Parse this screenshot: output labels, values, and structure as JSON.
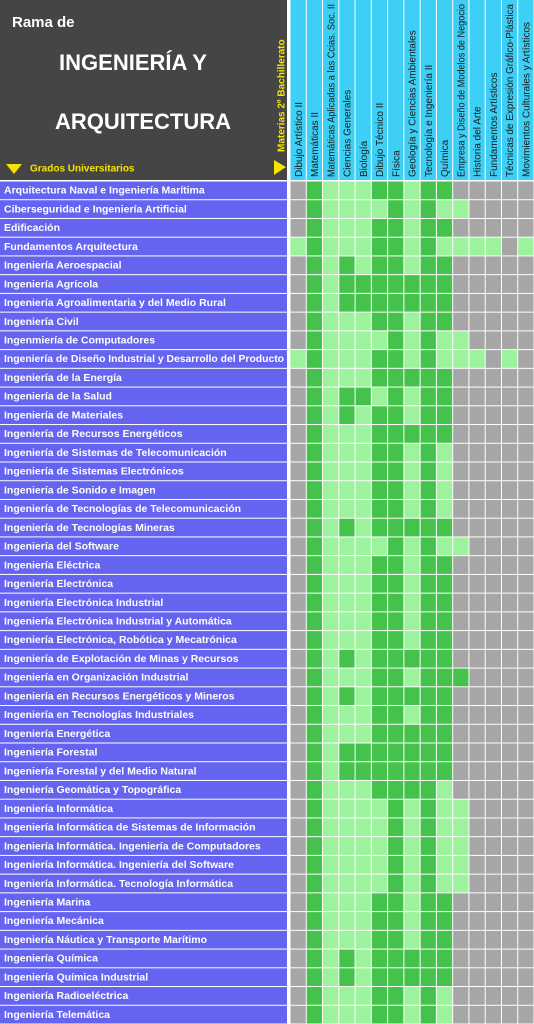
{
  "header": {
    "title_line1": "Rama de",
    "title_line2": "INGENIERÍA Y",
    "title_line3": "ARQUITECTURA",
    "rows_label": "Grados Universitarios",
    "columns_label": "Materias 2º Bachillerato"
  },
  "level_colors": [
    "#a6a6a6",
    "#9df29d",
    "#45c24b"
  ],
  "columns": [
    "Dibujo Artístico II",
    "Matemáticas II",
    "Matemáticas Aplicadas a las Ccias. Soc. II",
    "Ciencias Generales",
    "Biología",
    "Dibujo Técnico II",
    "Física",
    "Geología y Ciencias Ambientales",
    "Tecnología e Ingeniería II",
    "Química",
    "Empresa y Diseño de Modelos de Negocio",
    "Historia del Arte",
    "Fundamentos Artísticos",
    "Técnicas de Expresión Gráfico-Plástica",
    "Movimientos Culturales y Artísticos"
  ],
  "rows": [
    {
      "label": "Arquitectura Naval e Ingeniería Marítima",
      "cells": [
        0,
        2,
        1,
        1,
        1,
        2,
        2,
        1,
        2,
        2,
        0,
        0,
        0,
        0,
        0
      ]
    },
    {
      "label": "Ciberseguridad e Ingeniería Artificial",
      "cells": [
        0,
        2,
        1,
        1,
        1,
        1,
        2,
        1,
        2,
        1,
        1,
        0,
        0,
        0,
        0
      ]
    },
    {
      "label": "Edificación",
      "cells": [
        0,
        2,
        1,
        1,
        1,
        2,
        2,
        1,
        2,
        2,
        0,
        0,
        0,
        0,
        0
      ]
    },
    {
      "label": "Fundamentos Arquitectura",
      "cells": [
        1,
        2,
        1,
        1,
        1,
        2,
        2,
        1,
        2,
        1,
        1,
        1,
        1,
        0,
        1
      ]
    },
    {
      "label": "Ingeniería Aeroespacial",
      "cells": [
        0,
        2,
        1,
        2,
        1,
        2,
        2,
        1,
        2,
        2,
        0,
        0,
        0,
        0,
        0
      ]
    },
    {
      "label": "Ingeniería Agrícola",
      "cells": [
        0,
        2,
        1,
        2,
        2,
        2,
        2,
        2,
        2,
        2,
        0,
        0,
        0,
        0,
        0
      ]
    },
    {
      "label": "Ingeniería Agroalimentaria y del Medio Rural",
      "cells": [
        0,
        2,
        1,
        2,
        2,
        2,
        2,
        2,
        2,
        2,
        0,
        0,
        0,
        0,
        0
      ]
    },
    {
      "label": "Ingeniería Civil",
      "cells": [
        0,
        2,
        1,
        1,
        1,
        2,
        2,
        1,
        2,
        2,
        0,
        0,
        0,
        0,
        0
      ]
    },
    {
      "label": "Ingenmiería de Computadores",
      "cells": [
        0,
        2,
        1,
        1,
        1,
        1,
        2,
        1,
        2,
        1,
        1,
        0,
        0,
        0,
        0
      ]
    },
    {
      "label": "Ingeniería de Diseño Industrial y Desarrollo del Producto",
      "cells": [
        1,
        2,
        1,
        1,
        1,
        2,
        2,
        1,
        2,
        1,
        1,
        1,
        0,
        1,
        0
      ]
    },
    {
      "label": "Ingeniería de la Energía",
      "cells": [
        0,
        2,
        1,
        1,
        1,
        2,
        2,
        2,
        2,
        2,
        0,
        0,
        0,
        0,
        0
      ]
    },
    {
      "label": "Ingeniería de la Salud",
      "cells": [
        0,
        2,
        1,
        2,
        2,
        1,
        2,
        1,
        2,
        2,
        0,
        0,
        0,
        0,
        0
      ]
    },
    {
      "label": "Ingeniería de Materiales",
      "cells": [
        0,
        2,
        1,
        2,
        1,
        2,
        2,
        1,
        2,
        2,
        0,
        0,
        0,
        0,
        0
      ]
    },
    {
      "label": "Ingeniería de Recursos Energéticos",
      "cells": [
        0,
        2,
        1,
        1,
        1,
        2,
        2,
        2,
        2,
        2,
        0,
        0,
        0,
        0,
        0
      ]
    },
    {
      "label": "Ingeniería de Sistemas de Telecomunicación",
      "cells": [
        0,
        2,
        1,
        1,
        1,
        2,
        2,
        1,
        2,
        1,
        0,
        0,
        0,
        0,
        0
      ]
    },
    {
      "label": "Ingeniería de Sistemas Electrónicos",
      "cells": [
        0,
        2,
        1,
        1,
        1,
        2,
        2,
        1,
        2,
        1,
        0,
        0,
        0,
        0,
        0
      ]
    },
    {
      "label": "Ingeniería de Sonido e Imagen",
      "cells": [
        0,
        2,
        1,
        1,
        1,
        2,
        2,
        1,
        2,
        1,
        0,
        0,
        0,
        0,
        0
      ]
    },
    {
      "label": "Ingeniería de Tecnologías de Telecomunicación",
      "cells": [
        0,
        2,
        1,
        1,
        1,
        2,
        2,
        1,
        2,
        1,
        0,
        0,
        0,
        0,
        0
      ]
    },
    {
      "label": "Ingeniería de Tecnologías Mineras",
      "cells": [
        0,
        2,
        1,
        2,
        1,
        2,
        2,
        2,
        2,
        2,
        0,
        0,
        0,
        0,
        0
      ]
    },
    {
      "label": "Ingeniería del Software",
      "cells": [
        0,
        2,
        1,
        1,
        1,
        1,
        2,
        1,
        2,
        1,
        1,
        0,
        0,
        0,
        0
      ]
    },
    {
      "label": "Ingeniería Eléctrica",
      "cells": [
        0,
        2,
        1,
        1,
        1,
        2,
        2,
        1,
        2,
        2,
        0,
        0,
        0,
        0,
        0
      ]
    },
    {
      "label": "Ingeniería Electrónica",
      "cells": [
        0,
        2,
        1,
        1,
        1,
        2,
        2,
        1,
        2,
        2,
        0,
        0,
        0,
        0,
        0
      ]
    },
    {
      "label": "Ingeniería Electrónica Industrial",
      "cells": [
        0,
        2,
        1,
        1,
        1,
        2,
        2,
        1,
        2,
        2,
        0,
        0,
        0,
        0,
        0
      ]
    },
    {
      "label": "Ingeniería Electrónica Industrial y Automática",
      "cells": [
        0,
        2,
        1,
        1,
        1,
        2,
        2,
        1,
        2,
        2,
        0,
        0,
        0,
        0,
        0
      ]
    },
    {
      "label": "Ingeniería Electrónica, Robótica y Mecatrónica",
      "cells": [
        0,
        2,
        1,
        1,
        1,
        2,
        2,
        1,
        2,
        2,
        0,
        0,
        0,
        0,
        0
      ]
    },
    {
      "label": "Ingeniería de Explotación de Minas y Recursos",
      "cells": [
        0,
        2,
        1,
        2,
        1,
        2,
        2,
        2,
        2,
        2,
        0,
        0,
        0,
        0,
        0
      ]
    },
    {
      "label": "Ingeniería en Organización Industrial",
      "cells": [
        0,
        2,
        1,
        1,
        1,
        2,
        2,
        1,
        2,
        2,
        2,
        0,
        0,
        0,
        0
      ]
    },
    {
      "label": "Ingeniería en Recursos Energéticos y Mineros",
      "cells": [
        0,
        2,
        1,
        2,
        1,
        2,
        2,
        2,
        2,
        2,
        0,
        0,
        0,
        0,
        0
      ]
    },
    {
      "label": "Ingeniería en Tecnologías Industriales",
      "cells": [
        0,
        2,
        1,
        1,
        1,
        2,
        2,
        1,
        2,
        2,
        0,
        0,
        0,
        0,
        0
      ]
    },
    {
      "label": "Ingeniería Energética",
      "cells": [
        0,
        2,
        1,
        1,
        1,
        2,
        2,
        2,
        2,
        2,
        0,
        0,
        0,
        0,
        0
      ]
    },
    {
      "label": "Ingeniería Forestal",
      "cells": [
        0,
        2,
        1,
        2,
        2,
        2,
        2,
        2,
        2,
        2,
        0,
        0,
        0,
        0,
        0
      ]
    },
    {
      "label": "Ingeniería Forestal y del Medio Natural",
      "cells": [
        0,
        2,
        1,
        2,
        2,
        2,
        2,
        2,
        2,
        2,
        0,
        0,
        0,
        0,
        0
      ]
    },
    {
      "label": "Ingeniería Geomática y Topográfica",
      "cells": [
        0,
        2,
        1,
        1,
        1,
        2,
        2,
        2,
        2,
        1,
        0,
        0,
        0,
        0,
        0
      ]
    },
    {
      "label": "Ingeniería Informática",
      "cells": [
        0,
        2,
        1,
        1,
        1,
        1,
        2,
        1,
        2,
        1,
        1,
        0,
        0,
        0,
        0
      ]
    },
    {
      "label": "Ingeniería Informática de Sistemas de Información",
      "cells": [
        0,
        2,
        1,
        1,
        1,
        1,
        2,
        1,
        2,
        1,
        1,
        0,
        0,
        0,
        0
      ]
    },
    {
      "label": "Ingeniería Informática. Ingeniería de Computadores",
      "cells": [
        0,
        2,
        1,
        1,
        1,
        1,
        2,
        1,
        2,
        1,
        1,
        0,
        0,
        0,
        0
      ]
    },
    {
      "label": "Ingeniería Informática. Ingeniería del Software",
      "cells": [
        0,
        2,
        1,
        1,
        1,
        1,
        2,
        1,
        2,
        1,
        1,
        0,
        0,
        0,
        0
      ]
    },
    {
      "label": "Ingeniería Informática. Tecnología Informática",
      "cells": [
        0,
        2,
        1,
        1,
        1,
        1,
        2,
        1,
        2,
        1,
        1,
        0,
        0,
        0,
        0
      ]
    },
    {
      "label": "Ingeniería Marina",
      "cells": [
        0,
        2,
        1,
        1,
        1,
        2,
        2,
        1,
        2,
        2,
        0,
        0,
        0,
        0,
        0
      ]
    },
    {
      "label": "Ingeniería Mecánica",
      "cells": [
        0,
        2,
        1,
        1,
        1,
        2,
        2,
        1,
        2,
        2,
        0,
        0,
        0,
        0,
        0
      ]
    },
    {
      "label": "Ingeniería Náutica y Transporte Marítimo",
      "cells": [
        0,
        2,
        1,
        1,
        1,
        2,
        2,
        1,
        2,
        2,
        0,
        0,
        0,
        0,
        0
      ]
    },
    {
      "label": "Ingeniería Química",
      "cells": [
        0,
        2,
        1,
        2,
        1,
        2,
        2,
        2,
        2,
        2,
        0,
        0,
        0,
        0,
        0
      ]
    },
    {
      "label": "Ingeniería Química Industrial",
      "cells": [
        0,
        2,
        1,
        2,
        1,
        2,
        2,
        2,
        2,
        2,
        0,
        0,
        0,
        0,
        0
      ]
    },
    {
      "label": "Ingeniería Radioeléctrica",
      "cells": [
        0,
        2,
        1,
        1,
        1,
        2,
        2,
        1,
        2,
        1,
        0,
        0,
        0,
        0,
        0
      ]
    },
    {
      "label": "Ingeniería Telemática",
      "cells": [
        0,
        2,
        1,
        1,
        1,
        2,
        2,
        1,
        2,
        1,
        0,
        0,
        0,
        0,
        0
      ]
    }
  ]
}
